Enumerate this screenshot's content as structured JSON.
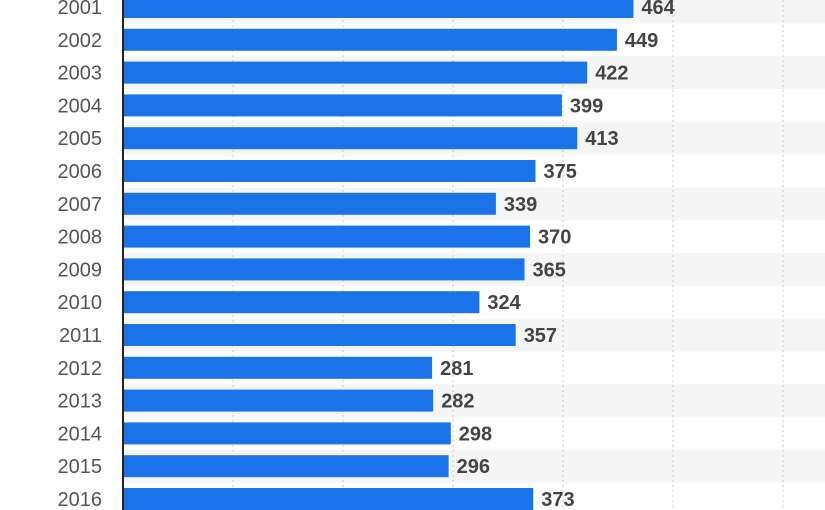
{
  "chart_data": {
    "type": "bar",
    "orientation": "horizontal",
    "categories": [
      "2001",
      "2002",
      "2003",
      "2004",
      "2005",
      "2006",
      "2007",
      "2008",
      "2009",
      "2010",
      "2011",
      "2012",
      "2013",
      "2014",
      "2015",
      "2016"
    ],
    "values": [
      464,
      449,
      422,
      399,
      413,
      375,
      339,
      370,
      365,
      324,
      357,
      281,
      282,
      298,
      296,
      373
    ],
    "title": "",
    "xlabel": "",
    "ylabel": "",
    "xlim": [
      0,
      600
    ],
    "grid": true,
    "data_labels": true,
    "bar_color": "#1a73e8",
    "band_color": "#f5f5f5"
  }
}
